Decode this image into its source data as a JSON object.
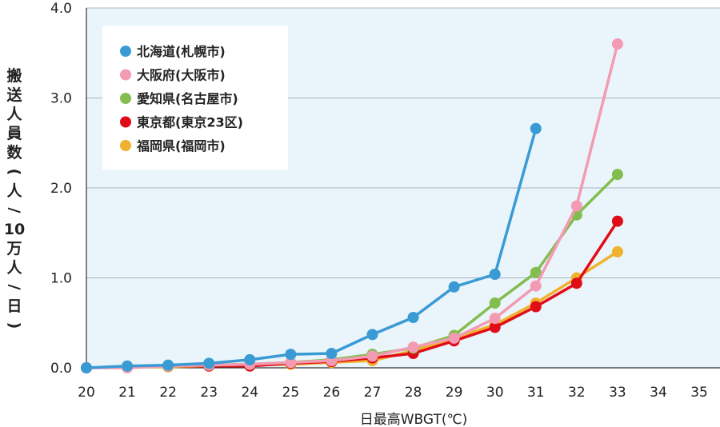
{
  "chart_data": {
    "type": "line",
    "xlabel": "日最高WBGT(℃)",
    "ylabel": "搬送人員数(人/10万人/日)",
    "x_ticks": [
      "20",
      "21",
      "22",
      "23",
      "24",
      "25",
      "26",
      "27",
      "28",
      "29",
      "30",
      "31",
      "32",
      "33",
      "34",
      "35"
    ],
    "y_ticks": [
      "0.0",
      "1.0",
      "2.0",
      "3.0",
      "4.0"
    ],
    "xlim": [
      20,
      35
    ],
    "ylim": [
      0,
      4
    ],
    "grid": "horizontal",
    "legend_position": "top-left",
    "series": [
      {
        "name": "北海道(札幌市)",
        "color": "#3a9bd4",
        "x": [
          20,
          21,
          22,
          23,
          24,
          25,
          26,
          27,
          28,
          29,
          30,
          31
        ],
        "y": [
          0.0,
          0.02,
          0.03,
          0.05,
          0.09,
          0.15,
          0.16,
          0.37,
          0.56,
          0.9,
          1.04,
          2.66
        ]
      },
      {
        "name": "大阪府(大阪市)",
        "color": "#f29bb3",
        "x": [
          20,
          21,
          22,
          23,
          24,
          25,
          26,
          27,
          28,
          29,
          30,
          31,
          32,
          33
        ],
        "y": [
          0.0,
          0.0,
          0.02,
          0.03,
          0.04,
          0.06,
          0.08,
          0.13,
          0.23,
          0.33,
          0.55,
          0.91,
          1.8,
          3.6
        ]
      },
      {
        "name": "愛知県(名古屋市)",
        "color": "#84bd4f",
        "x": [
          20,
          21,
          22,
          23,
          24,
          25,
          26,
          27,
          28,
          29,
          30,
          31,
          32,
          33
        ],
        "y": [
          0.0,
          0.01,
          0.02,
          0.03,
          0.04,
          0.06,
          0.09,
          0.15,
          0.22,
          0.36,
          0.72,
          1.06,
          1.7,
          2.15
        ]
      },
      {
        "name": "東京都(東京23区)",
        "color": "#e00d18",
        "x": [
          20,
          21,
          22,
          23,
          24,
          25,
          26,
          27,
          28,
          29,
          30,
          31,
          32,
          33
        ],
        "y": [
          0.0,
          0.01,
          0.02,
          0.02,
          0.02,
          0.05,
          0.07,
          0.11,
          0.16,
          0.3,
          0.45,
          0.68,
          0.94,
          1.63
        ]
      },
      {
        "name": "福岡県(福岡市)",
        "color": "#f0b22e",
        "x": [
          20,
          21,
          22,
          23,
          24,
          25,
          26,
          27,
          28,
          29,
          30,
          31,
          32,
          33
        ],
        "y": [
          0.0,
          0.01,
          0.01,
          0.02,
          0.03,
          0.04,
          0.06,
          0.08,
          0.19,
          0.33,
          0.48,
          0.72,
          1.0,
          1.29
        ]
      }
    ]
  }
}
